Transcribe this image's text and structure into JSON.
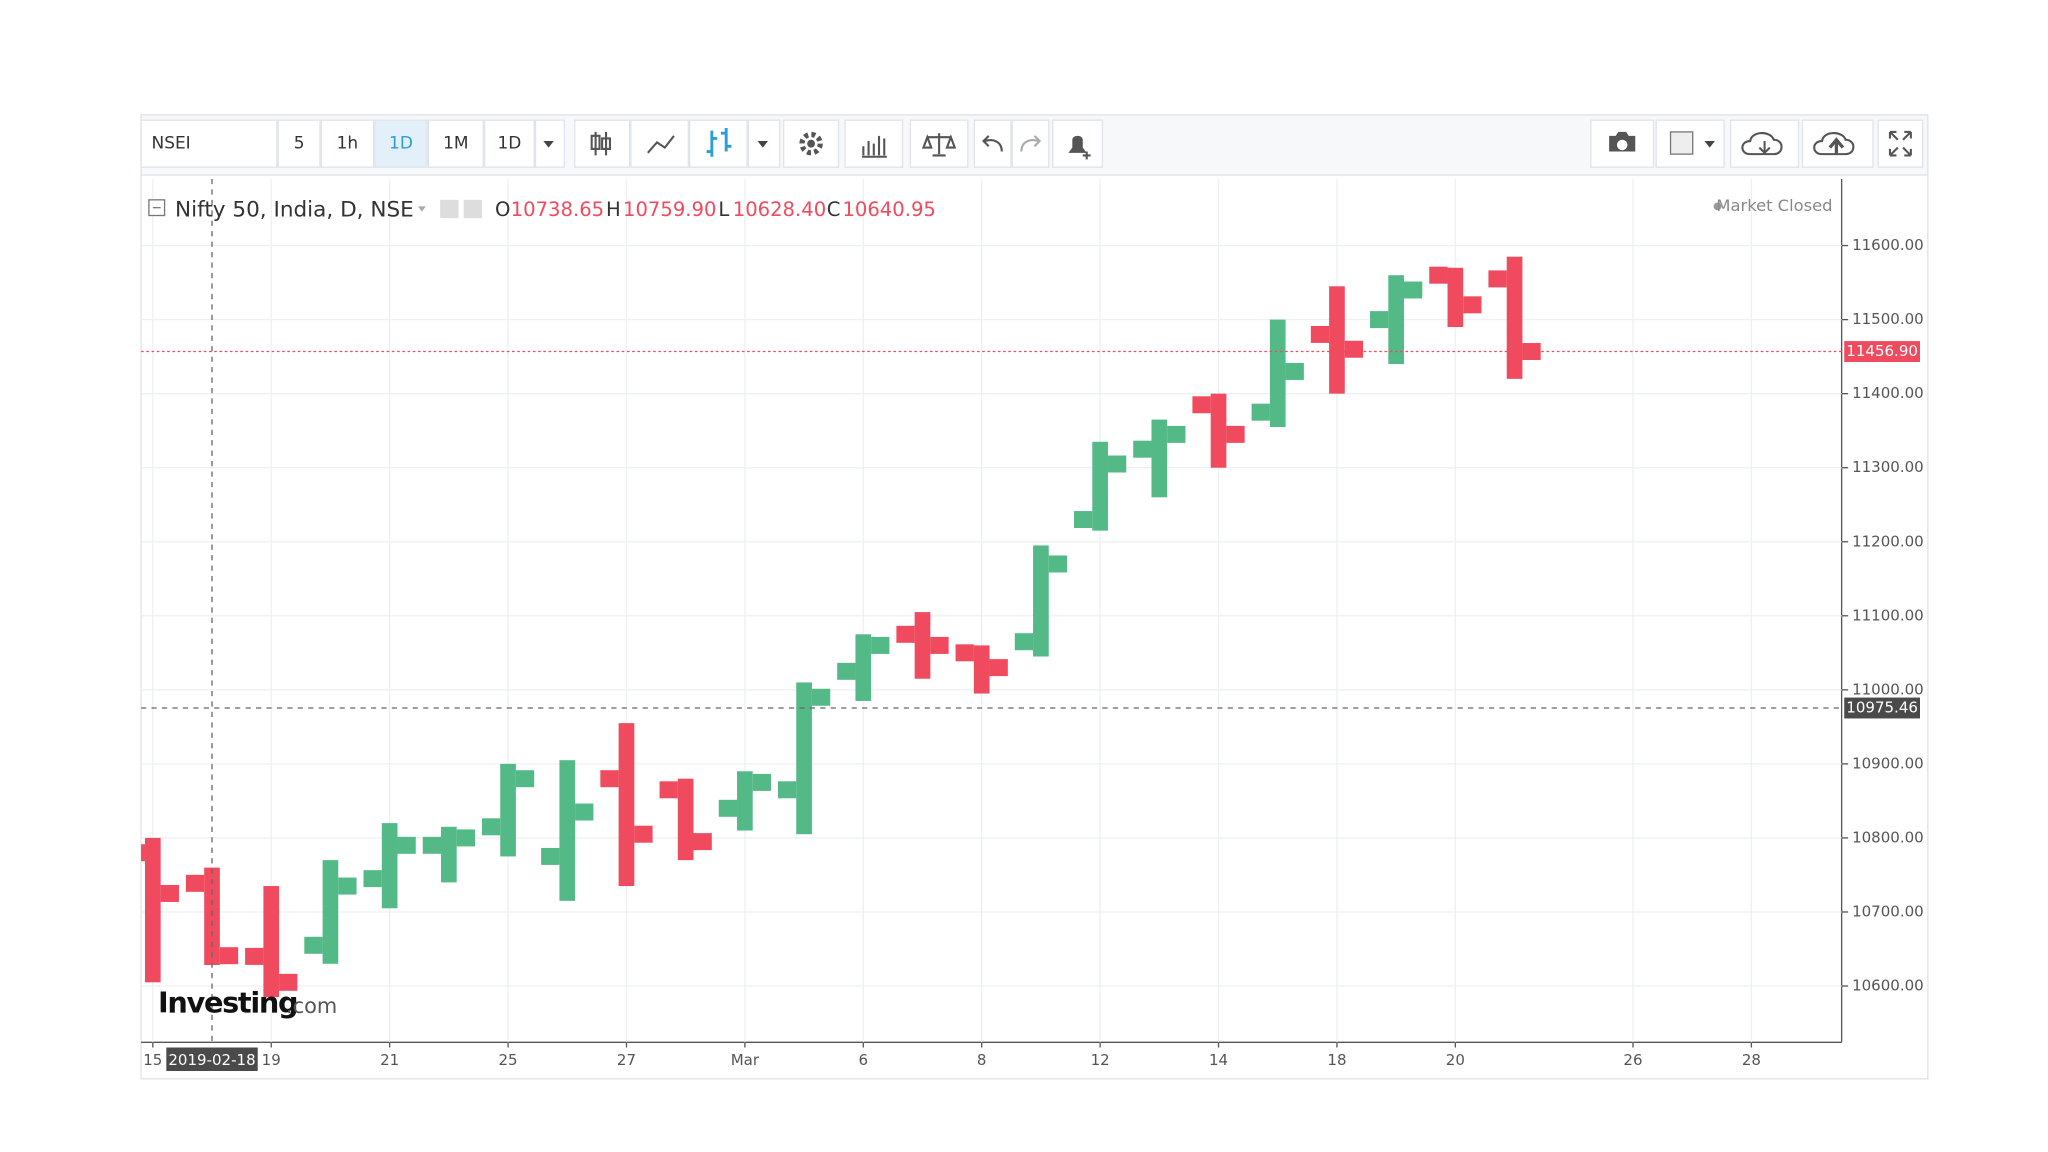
{
  "toolbar": {
    "symbol": "NSEI",
    "intervals": [
      "5",
      "1h",
      "1D",
      "1M",
      "1D"
    ]
  },
  "legend": {
    "title": "Nifty 50, India, D, NSE",
    "o_label": "O",
    "open": "10738.65",
    "h_label": "H",
    "high": "10759.90",
    "l_label": "L",
    "low": "10628.40",
    "c_label": "C",
    "close": "10640.95",
    "status": "Market Closed"
  },
  "watermark": {
    "brand": "Investing",
    "suffix": ".com"
  },
  "chart_data": {
    "type": "ohlc",
    "categories": [
      "15",
      null,
      "19",
      null,
      "21",
      null,
      "25",
      null,
      "27",
      null,
      "Mar",
      null,
      "6",
      null,
      "8",
      null,
      "12",
      null,
      "14",
      null,
      "18",
      null,
      "20",
      null,
      null,
      "26",
      null,
      "28"
    ],
    "open": [
      10780,
      10738.65,
      10640,
      10655,
      10745,
      10790,
      10815,
      10775,
      10880,
      10865,
      10840,
      10865,
      11025,
      11075,
      11050,
      11065,
      11230,
      11325,
      11385,
      11375,
      11480,
      11500,
      11560,
      11555,
      null,
      null,
      null,
      null
    ],
    "high": [
      10800,
      10759.9,
      10735,
      10770,
      10820,
      10815,
      10900,
      10905,
      10955,
      10880,
      10890,
      11010,
      11075,
      11105,
      11060,
      11195,
      11335,
      11365,
      11400,
      11500,
      11545,
      11560,
      11570,
      11585,
      null,
      null,
      null,
      null
    ],
    "low": [
      10605,
      10628.4,
      10585,
      10630,
      10705,
      10740,
      10775,
      10715,
      10735,
      10770,
      10810,
      10805,
      10985,
      11015,
      10995,
      11045,
      11215,
      11260,
      11300,
      11355,
      11400,
      11440,
      11490,
      11420,
      null,
      null,
      null,
      null
    ],
    "close": [
      10725,
      10640.95,
      10605,
      10735,
      10790,
      10800,
      10880,
      10835,
      10805,
      10795,
      10875,
      10990,
      11060,
      11060,
      11030,
      11170,
      11305,
      11345,
      11345,
      11430,
      11460,
      11540,
      11520,
      11456.9,
      null,
      null,
      null,
      null
    ],
    "up_color": "#53b987",
    "down_color": "#f04a5e",
    "ylim": [
      10524,
      11690
    ],
    "yticks": [
      {
        "value": 10600,
        "label": "10600.00"
      },
      {
        "value": 10700,
        "label": "10700.00"
      },
      {
        "value": 10800,
        "label": "10800.00"
      },
      {
        "value": 10900,
        "label": "10900.00"
      },
      {
        "value": 11000,
        "label": "11000.00"
      },
      {
        "value": 11100,
        "label": "11100.00"
      },
      {
        "value": 11200,
        "label": "11200.00"
      },
      {
        "value": 11300,
        "label": "11300.00"
      },
      {
        "value": 11400,
        "label": "11400.00"
      },
      {
        "value": 11500,
        "label": "11500.00"
      },
      {
        "value": 11600,
        "label": "11600.00"
      }
    ],
    "grid": true,
    "price_line": {
      "value": 11456.9,
      "label": "11456.90",
      "color": "#f04a5e"
    },
    "crosshair": {
      "x_index": 1,
      "x_label": "2019-02-18",
      "y": {
        "value": 10975.46,
        "label": "10975.46"
      }
    }
  }
}
